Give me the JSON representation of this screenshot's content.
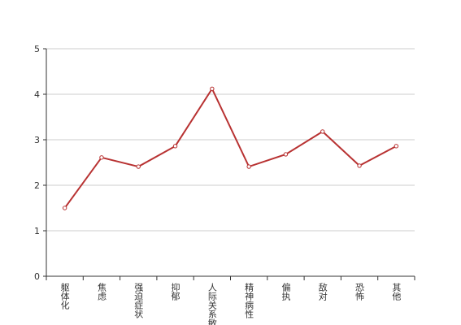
{
  "chart_data": {
    "type": "line",
    "categories": [
      "躯体化",
      "焦虑",
      "强迫症状",
      "抑郁",
      "人际关系敏感",
      "精神病性",
      "偏执",
      "敌对",
      "恐怖",
      "其他"
    ],
    "values": [
      1.5,
      2.61,
      2.41,
      2.86,
      4.12,
      2.41,
      2.68,
      3.18,
      2.43,
      2.86
    ],
    "color": "#b83232",
    "ylim": [
      0,
      5
    ],
    "yticks": [
      0,
      1,
      2,
      3,
      4,
      5
    ],
    "grid": true
  }
}
